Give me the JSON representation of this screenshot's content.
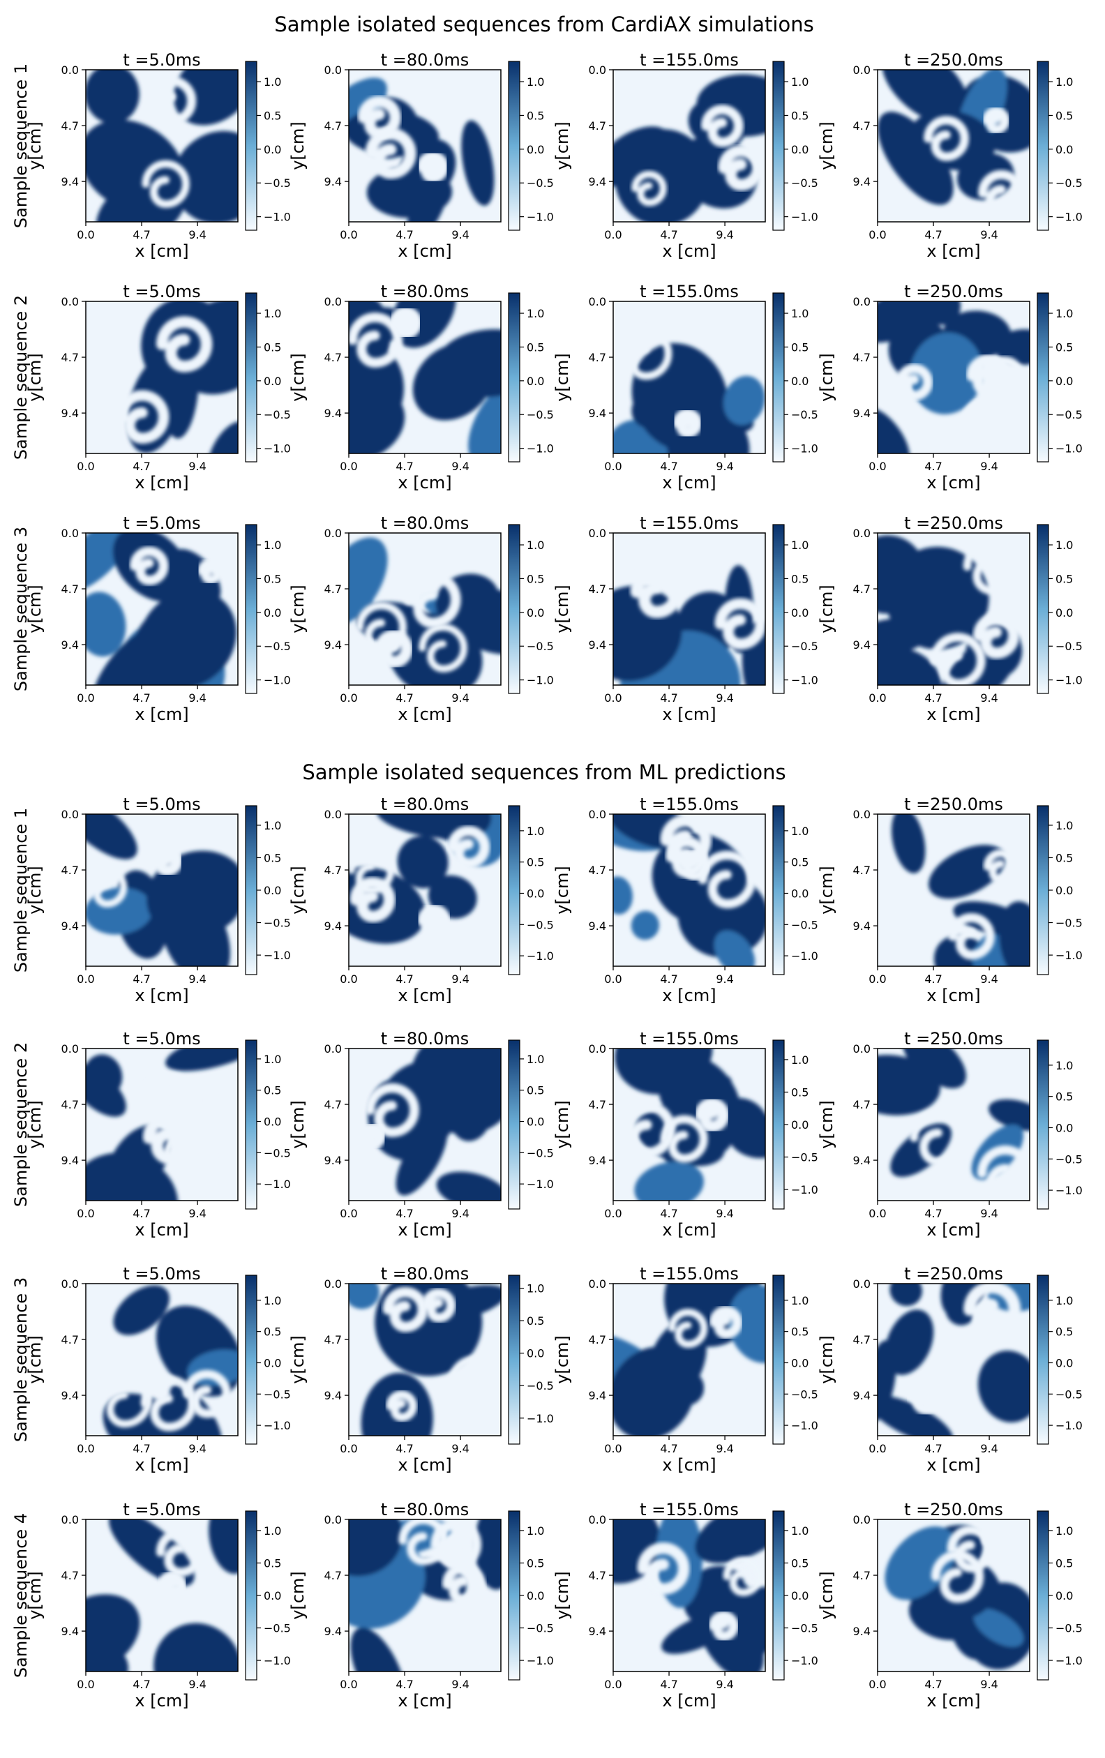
{
  "colormap": {
    "name": "Blues",
    "low": "#f7fbff",
    "mid": "#6baed6",
    "high": "#08306b"
  },
  "sections": [
    {
      "title": "Sample isolated sequences from CardiAX simulations",
      "rows": [
        {
          "ylabel": "Sample sequence 1",
          "cbar_ticks": [
            [
              1.0,
              0.5,
              0.0,
              -0.5,
              -1.0
            ],
            [
              1.0,
              0.5,
              0.0,
              -0.5,
              -1.0
            ],
            [
              1.0,
              0.5,
              0.0,
              -0.5,
              -1.0
            ],
            [
              1.0,
              0.5,
              0.0,
              -0.5,
              -1.0
            ]
          ],
          "cbar_range": [
            [
              -1.2,
              1.3
            ],
            [
              -1.2,
              1.3
            ],
            [
              -1.2,
              1.3
            ],
            [
              -1.2,
              1.3
            ]
          ]
        },
        {
          "ylabel": "Sample sequence 2",
          "cbar_ticks": [
            [
              1.0,
              0.5,
              0.0,
              -0.5,
              -1.0
            ],
            [
              1.0,
              0.5,
              0.0,
              -0.5,
              -1.0
            ],
            [
              1.0,
              0.5,
              0.0,
              -0.5,
              -1.0
            ],
            [
              1.0,
              0.5,
              0.0,
              -0.5,
              -1.0
            ]
          ],
          "cbar_range": [
            [
              -1.2,
              1.3
            ],
            [
              -1.2,
              1.3
            ],
            [
              -1.2,
              1.3
            ],
            [
              -1.2,
              1.3
            ]
          ]
        },
        {
          "ylabel": "Sample sequence 3",
          "cbar_ticks": [
            [
              1.0,
              0.5,
              0.0,
              -0.5,
              -1.0
            ],
            [
              1.0,
              0.5,
              0.0,
              -0.5,
              -1.0
            ],
            [
              1.0,
              0.5,
              0.0,
              -0.5,
              -1.0
            ],
            [
              1.0,
              0.5,
              0.0,
              -0.5,
              -1.0
            ]
          ],
          "cbar_range": [
            [
              -1.2,
              1.3
            ],
            [
              -1.2,
              1.3
            ],
            [
              -1.2,
              1.3
            ],
            [
              -1.2,
              1.3
            ]
          ]
        }
      ]
    },
    {
      "title": "Sample isolated sequences from ML predictions",
      "rows": [
        {
          "ylabel": "Sample sequence 1",
          "cbar_ticks": [
            [
              1.0,
              0.5,
              0.0,
              -0.5,
              -1.0
            ],
            [
              1.0,
              0.5,
              0.0,
              -0.5,
              -1.0
            ],
            [
              1.0,
              0.5,
              0.0,
              -0.5,
              -1.0
            ],
            [
              1.0,
              0.5,
              0.0,
              -0.5,
              -1.0
            ]
          ],
          "cbar_range": [
            [
              -1.3,
              1.3
            ],
            [
              -1.3,
              1.4
            ],
            [
              -1.3,
              1.4
            ],
            [
              -1.3,
              1.3
            ]
          ]
        },
        {
          "ylabel": "Sample sequence 2",
          "cbar_ticks": [
            [
              1.0,
              0.5,
              0.0,
              -0.5,
              -1.0
            ],
            [
              1.0,
              0.5,
              0.0,
              -0.5,
              -1.0
            ],
            [
              1.0,
              0.5,
              0.0,
              -0.5,
              -1.0
            ],
            [
              1.0,
              0.5,
              0.0,
              -0.5,
              -1.0
            ]
          ],
          "cbar_range": [
            [
              -1.4,
              1.3
            ],
            [
              -1.4,
              1.3
            ],
            [
              -1.3,
              1.3
            ],
            [
              -1.3,
              1.4
            ]
          ]
        },
        {
          "ylabel": "Sample sequence 3",
          "cbar_ticks": [
            [
              1.0,
              0.5,
              0.0,
              -0.5,
              -1.0
            ],
            [
              1.0,
              0.5,
              0.0,
              -0.5,
              -1.0
            ],
            [
              1.0,
              0.5,
              0.0,
              -0.5,
              -1.0
            ],
            [
              1.0,
              0.5,
              0.0,
              -0.5,
              -1.0
            ]
          ],
          "cbar_range": [
            [
              -1.3,
              1.4
            ],
            [
              -1.4,
              1.2
            ],
            [
              -1.3,
              1.4
            ],
            [
              -1.3,
              1.4
            ]
          ]
        },
        {
          "ylabel": "Sample sequence 4",
          "cbar_ticks": [
            [
              1.0,
              0.5,
              0.0,
              -0.5,
              -1.0
            ],
            [
              1.0,
              0.5,
              0.0,
              -0.5,
              -1.0
            ],
            [
              1.0,
              0.5,
              0.0,
              -0.5,
              -1.0
            ],
            [
              1.0,
              0.5,
              0.0,
              -0.5,
              -1.0
            ]
          ],
          "cbar_range": [
            [
              -1.3,
              1.3
            ],
            [
              -1.3,
              1.3
            ],
            [
              -1.3,
              1.3
            ],
            [
              -1.3,
              1.3
            ]
          ]
        }
      ]
    }
  ],
  "chart_data": {
    "type": "heatmap",
    "columns": [
      {
        "time_label": "t =5.0ms",
        "t_ms": 5.0
      },
      {
        "time_label": "t =80.0ms",
        "t_ms": 80.0
      },
      {
        "time_label": "t =155.0ms",
        "t_ms": 155.0
      },
      {
        "time_label": "t =250.0ms",
        "t_ms": 250.0
      }
    ],
    "xlabel": "x [cm]",
    "ylabel": "y[cm]",
    "xticks": [
      0.0,
      4.7,
      9.4
    ],
    "yticks": [
      0.0,
      4.7,
      9.4
    ],
    "xlim": [
      0,
      12.8
    ],
    "ylim": [
      12.8,
      0
    ],
    "value_range_approx": [
      -1.3,
      1.3
    ],
    "field_description": "2D excitation waves with spiral patterns on a 12.8 x 12.8 cm domain"
  }
}
